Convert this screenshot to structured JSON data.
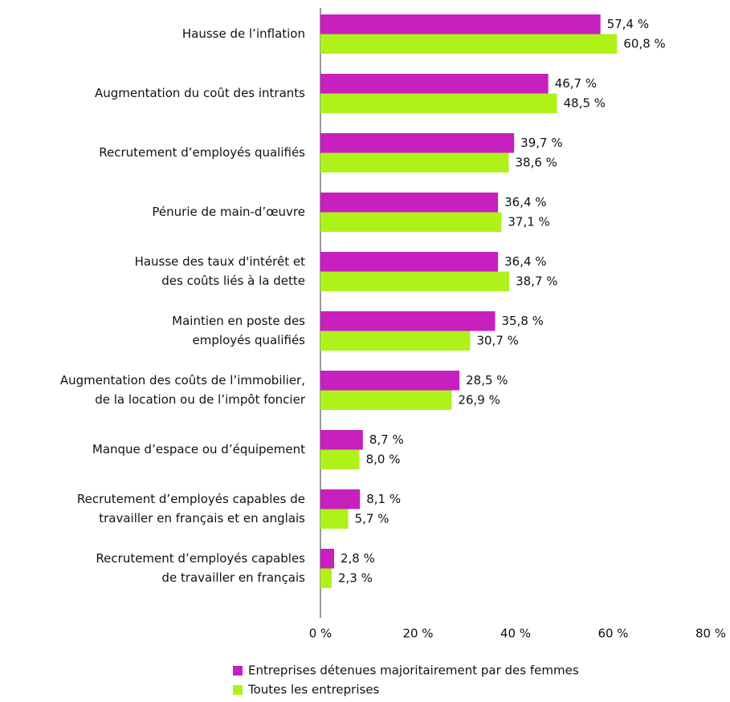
{
  "chart_data": {
    "type": "barh",
    "categories": [
      [
        "Hausse de l’inflation"
      ],
      [
        "Augmentation du coût des intrants"
      ],
      [
        "Recrutement d’employés qualifiés"
      ],
      [
        "Pénurie de main-d’œuvre"
      ],
      [
        "Hausse des taux d'intérêt et",
        "des coûts liés à la dette"
      ],
      [
        "Maintien en poste des",
        "employés qualifiés"
      ],
      [
        "Augmentation des coûts de l’immobilier,",
        "de la location ou de l’impôt foncier"
      ],
      [
        "Manque d’espace ou d’équipement"
      ],
      [
        "Recrutement d’employés capables de",
        "travailler en français et en anglais"
      ],
      [
        "Recrutement d’employés capables",
        "de travailler en français"
      ]
    ],
    "series": [
      {
        "name": "Entreprises détenues majoritairement par des femmes",
        "color": "#c81fbf",
        "values": [
          57.4,
          46.7,
          39.7,
          36.4,
          36.4,
          35.8,
          28.5,
          8.7,
          8.1,
          2.8
        ],
        "value_labels": [
          "57,4 %",
          "46,7 %",
          "39,7 %",
          "36,4 %",
          "36,4 %",
          "35,8 %",
          "28,5 %",
          "8,7 %",
          "8,1 %",
          "2,8 %"
        ]
      },
      {
        "name": "Toutes les entreprises",
        "color": "#aef21a",
        "values": [
          60.8,
          48.5,
          38.6,
          37.1,
          38.7,
          30.7,
          26.9,
          8.0,
          5.7,
          2.3
        ],
        "value_labels": [
          "60,8 %",
          "48,5 %",
          "38,6 %",
          "37,1 %",
          "38,7 %",
          "30,7 %",
          "26,9 %",
          "8,0 %",
          "5,7 %",
          "2,3 %"
        ]
      }
    ],
    "xlim": [
      0,
      80
    ],
    "xticks": [
      {
        "value": 0,
        "label": "0 %"
      },
      {
        "value": 20,
        "label": "20 %"
      },
      {
        "value": 40,
        "label": "40 %"
      },
      {
        "value": 60,
        "label": "60 %"
      },
      {
        "value": 80,
        "label": "80 %"
      }
    ],
    "legend": "bottom"
  }
}
